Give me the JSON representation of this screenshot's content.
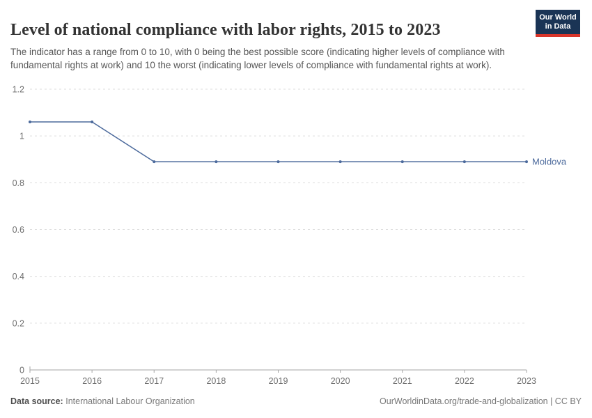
{
  "header": {
    "title": "Level of national compliance with labor rights, 2015 to 2023",
    "subtitle": "The indicator has a range from 0 to 10, with 0 being the best possible score (indicating higher levels of compliance with fundamental rights at work) and 10 the worst (indicating lower levels of compliance with fundamental rights at work).",
    "logo": {
      "line1": "Our World",
      "line2": "in Data",
      "bg_color": "#1a3455",
      "accent_color": "#d8352a"
    }
  },
  "chart_data": {
    "type": "line",
    "title": "Level of national compliance with labor rights, 2015 to 2023",
    "x": [
      2015,
      2016,
      2017,
      2018,
      2019,
      2020,
      2021,
      2022,
      2023
    ],
    "series": [
      {
        "name": "Moldova",
        "color": "#4c6a9c",
        "values": [
          1.06,
          1.06,
          0.89,
          0.89,
          0.89,
          0.89,
          0.89,
          0.89,
          0.89
        ]
      }
    ],
    "ylim": [
      0,
      1.2
    ],
    "yticks": [
      0,
      0.2,
      0.4,
      0.6,
      0.8,
      1,
      1.2
    ],
    "xlabel": "",
    "ylabel": "",
    "grid": true,
    "legend_position": "end-of-line"
  },
  "footer": {
    "source_label": "Data source:",
    "source_value": "International Labour Organization",
    "right_text": "OurWorldinData.org/trade-and-globalization | CC BY"
  }
}
